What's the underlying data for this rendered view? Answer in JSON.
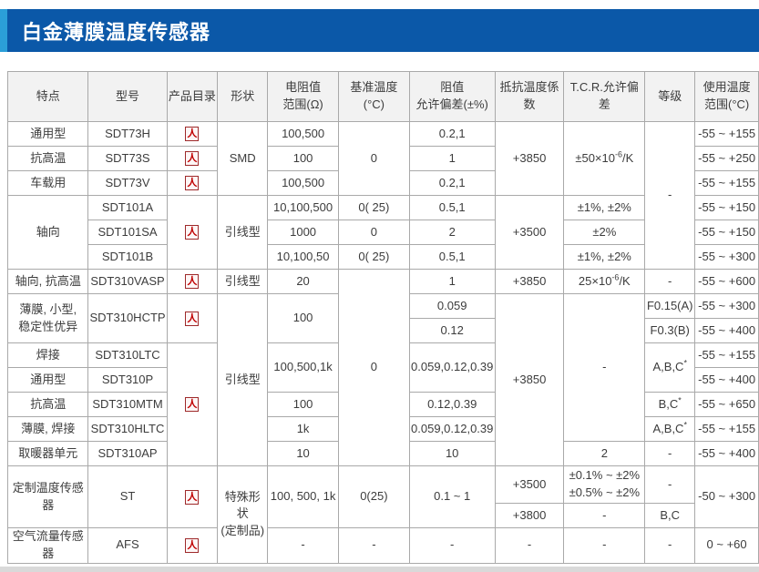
{
  "title": "白金薄膜温度传感器",
  "colors": {
    "banner_blue": "#0b58a8",
    "banner_accent": "#2b9fd8",
    "header_bg": "#f2f2f2",
    "border": "#a9a9a9",
    "text": "#3c3c3c",
    "pdf_red": "#c00000",
    "footer_gray": "#d9d9d9"
  },
  "icons": {
    "pdf_icon_label": "人"
  },
  "table": {
    "columns": [
      "特点",
      "型号",
      "产品目录",
      "形状",
      "电阻值\n范围(Ω)",
      "基准温度(°C)",
      "阻值\n允许偏差(±%)",
      "抵抗温度係数",
      "T.C.R.允许偏差",
      "等级",
      "使用温度\n范围(°C)"
    ],
    "rows": [
      [
        {
          "t": "通用型"
        },
        {
          "t": "SDT73H"
        },
        {
          "pdf": true
        },
        {
          "t": "SMD",
          "rs": 3
        },
        {
          "t": "100,500"
        },
        {
          "t": "0",
          "rs": 3
        },
        {
          "t": "0.2,1"
        },
        {
          "t": "+3850",
          "rs": 3
        },
        {
          "t": "±50×10^-6^/K",
          "rs": 3
        },
        {
          "t": "-",
          "rs": 6
        },
        {
          "t": "-55 ~ +155"
        }
      ],
      [
        {
          "t": "抗高温"
        },
        {
          "t": "SDT73S"
        },
        {
          "pdf": true
        },
        {
          "t": "100"
        },
        {
          "t": "1"
        },
        {
          "t": "-55 ~ +250"
        }
      ],
      [
        {
          "t": "车载用"
        },
        {
          "t": "SDT73V"
        },
        {
          "pdf": true
        },
        {
          "t": "100,500"
        },
        {
          "t": "0.2,1"
        },
        {
          "t": "-55 ~ +155"
        }
      ],
      [
        {
          "t": "轴向",
          "rs": 3
        },
        {
          "t": "SDT101A"
        },
        {
          "pdf": true,
          "rs": 3
        },
        {
          "t": "引线型",
          "rs": 3
        },
        {
          "t": "10,100,500"
        },
        {
          "t": "0( 25)"
        },
        {
          "t": "0.5,1"
        },
        {
          "t": "+3500",
          "rs": 3
        },
        {
          "t": "±1%, ±2%"
        },
        {
          "t": "-55 ~ +150"
        }
      ],
      [
        {
          "t": "SDT101SA"
        },
        {
          "t": "1000"
        },
        {
          "t": "0"
        },
        {
          "t": "2"
        },
        {
          "t": "±2%"
        },
        {
          "t": "-55 ~ +150"
        }
      ],
      [
        {
          "t": "SDT101B"
        },
        {
          "t": "10,100,50"
        },
        {
          "t": "0( 25)"
        },
        {
          "t": "0.5,1"
        },
        {
          "t": "±1%, ±2%"
        },
        {
          "t": "-55 ~ +300"
        }
      ],
      [
        {
          "t": "轴向, 抗高温"
        },
        {
          "t": "SDT310VASP"
        },
        {
          "pdf": true
        },
        {
          "t": "引线型"
        },
        {
          "t": "20"
        },
        {
          "t": "0",
          "rs": 8
        },
        {
          "t": "1"
        },
        {
          "t": "+3850"
        },
        {
          "t": "25×10^-6^/K"
        },
        {
          "t": "-"
        },
        {
          "t": "-55 ~ +600"
        }
      ],
      [
        {
          "t": "薄膜, 小型,\n稳定性优异",
          "rs": 2
        },
        {
          "t": "SDT310HCTP",
          "rs": 2
        },
        {
          "pdf": true,
          "rs": 2
        },
        {
          "t": "引线型",
          "rs": 7
        },
        {
          "t": "100",
          "rs": 2
        },
        {
          "t": "0.059"
        },
        {
          "t": "+3850",
          "rs": 7
        },
        {
          "t": "-",
          "rs": 6
        },
        {
          "t": "F0.15(A)"
        },
        {
          "t": "-55 ~ +300"
        }
      ],
      [
        {
          "t": "0.12"
        },
        {
          "t": "F0.3(B)"
        },
        {
          "t": "-55 ~ +400"
        }
      ],
      [
        {
          "t": "焊接"
        },
        {
          "t": "SDT310LTC"
        },
        {
          "pdf": true,
          "rs": 5
        },
        {
          "t": "100,500,1k",
          "rs": 2
        },
        {
          "t": "0.059,0.12,0.39",
          "rs": 2
        },
        {
          "t": "A,B,C^*^",
          "rs": 2
        },
        {
          "t": "-55 ~ +155"
        }
      ],
      [
        {
          "t": "通用型"
        },
        {
          "t": "SDT310P"
        },
        {
          "t": "-55 ~ +400"
        }
      ],
      [
        {
          "t": "抗高温"
        },
        {
          "t": "SDT310MTM"
        },
        {
          "t": "100"
        },
        {
          "t": "0.12,0.39"
        },
        {
          "t": "B,C^*^"
        },
        {
          "t": "-55 ~ +650"
        }
      ],
      [
        {
          "t": "薄膜, 焊接"
        },
        {
          "t": "SDT310HLTC"
        },
        {
          "t": "1k"
        },
        {
          "t": "0.059,0.12,0.39"
        },
        {
          "t": "A,B,C^*^"
        },
        {
          "t": "-55 ~ +155"
        }
      ],
      [
        {
          "t": "取暖器单元"
        },
        {
          "t": "SDT310AP"
        },
        {
          "t": "10"
        },
        {
          "t": "10"
        },
        {
          "t": "2"
        },
        {
          "t": "-"
        },
        {
          "t": "-55 ~ +400"
        }
      ],
      [
        {
          "t": "定制温度传感器",
          "rs": 2
        },
        {
          "t": "ST",
          "rs": 2
        },
        {
          "pdf": true,
          "rs": 2
        },
        {
          "t": "特殊形状\n(定制品)",
          "rs": 3
        },
        {
          "t": "100, 500, 1k",
          "rs": 2
        },
        {
          "t": "0(25)",
          "rs": 2
        },
        {
          "t": "0.1 ~ 1",
          "rs": 2
        },
        {
          "t": "+3500"
        },
        {
          "t": "±0.1% ~ ±2%\n±0.5% ~ ±2%"
        },
        {
          "t": "-"
        },
        {
          "t": "-50 ~ +300",
          "rs": 2
        }
      ],
      [
        {
          "t": "+3800"
        },
        {
          "t": "-"
        },
        {
          "t": "B,C"
        }
      ],
      [
        {
          "t": "空气流量传感器"
        },
        {
          "t": "AFS"
        },
        {
          "pdf": true
        },
        {
          "t": "-"
        },
        {
          "t": "-"
        },
        {
          "t": "-"
        },
        {
          "t": "-"
        },
        {
          "t": "-"
        },
        {
          "t": "-"
        },
        {
          "t": "0 ~ +60"
        }
      ]
    ]
  }
}
